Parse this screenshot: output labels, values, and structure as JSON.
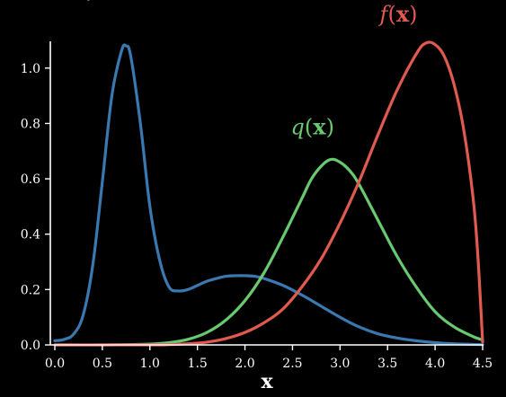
{
  "chart_data": {
    "type": "line",
    "xlabel": "x",
    "ylabel": "",
    "xlim": [
      0.0,
      4.5
    ],
    "ylim": [
      0.0,
      1.1
    ],
    "x_ticks": [
      "0.0",
      "0.5",
      "1.0",
      "1.5",
      "2.0",
      "2.5",
      "3.0",
      "3.5",
      "4.0",
      "4.5"
    ],
    "y_ticks": [
      "0.0",
      "0.2",
      "0.4",
      "0.6",
      "0.8",
      "1.0"
    ],
    "grid": false,
    "legend": "none",
    "series": [
      {
        "name": "p(x)",
        "label_parts": [
          "p",
          "(",
          "x",
          ")"
        ],
        "color": "#3a78b0",
        "x": [
          0.0,
          0.1,
          0.2,
          0.3,
          0.4,
          0.5,
          0.6,
          0.7,
          0.75,
          0.8,
          0.9,
          1.0,
          1.1,
          1.2,
          1.3,
          1.4,
          1.5,
          1.6,
          1.7,
          1.8,
          1.9,
          2.0,
          2.1,
          2.2,
          2.4,
          2.6,
          2.8,
          3.0,
          3.2,
          3.4,
          3.6,
          3.8,
          4.0,
          4.2,
          4.5
        ],
        "y": [
          0.015,
          0.02,
          0.04,
          0.11,
          0.29,
          0.59,
          0.9,
          1.06,
          1.08,
          1.04,
          0.8,
          0.5,
          0.31,
          0.21,
          0.195,
          0.2,
          0.215,
          0.23,
          0.24,
          0.248,
          0.25,
          0.25,
          0.248,
          0.24,
          0.215,
          0.18,
          0.14,
          0.1,
          0.065,
          0.04,
          0.025,
          0.015,
          0.008,
          0.004,
          0.001
        ]
      },
      {
        "name": "q(x)",
        "label_parts": [
          "q",
          "(",
          "x",
          ")"
        ],
        "color": "#68c96f",
        "x": [
          0.0,
          0.5,
          1.0,
          1.2,
          1.4,
          1.6,
          1.8,
          2.0,
          2.2,
          2.4,
          2.6,
          2.7,
          2.8,
          2.9,
          3.0,
          3.1,
          3.2,
          3.4,
          3.6,
          3.8,
          4.0,
          4.2,
          4.4,
          4.5
        ],
        "y": [
          0.0,
          0.0,
          0.003,
          0.008,
          0.02,
          0.045,
          0.09,
          0.16,
          0.26,
          0.39,
          0.53,
          0.6,
          0.645,
          0.67,
          0.66,
          0.63,
          0.58,
          0.45,
          0.32,
          0.21,
          0.12,
          0.065,
          0.03,
          0.018
        ]
      },
      {
        "name": "f(x)",
        "label_parts": [
          "f",
          "(",
          "x",
          ")"
        ],
        "color": "#e05a50",
        "x": [
          0.0,
          1.0,
          1.2,
          1.4,
          1.6,
          1.8,
          2.0,
          2.2,
          2.4,
          2.6,
          2.8,
          3.0,
          3.2,
          3.4,
          3.6,
          3.8,
          3.9,
          4.0,
          4.1,
          4.2,
          4.3,
          4.4,
          4.45,
          4.5
        ],
        "y": [
          0.0,
          0.0,
          0.001,
          0.004,
          0.01,
          0.023,
          0.045,
          0.08,
          0.13,
          0.21,
          0.31,
          0.44,
          0.59,
          0.76,
          0.92,
          1.05,
          1.09,
          1.085,
          1.04,
          0.94,
          0.78,
          0.53,
          0.32,
          0.01
        ]
      }
    ]
  }
}
